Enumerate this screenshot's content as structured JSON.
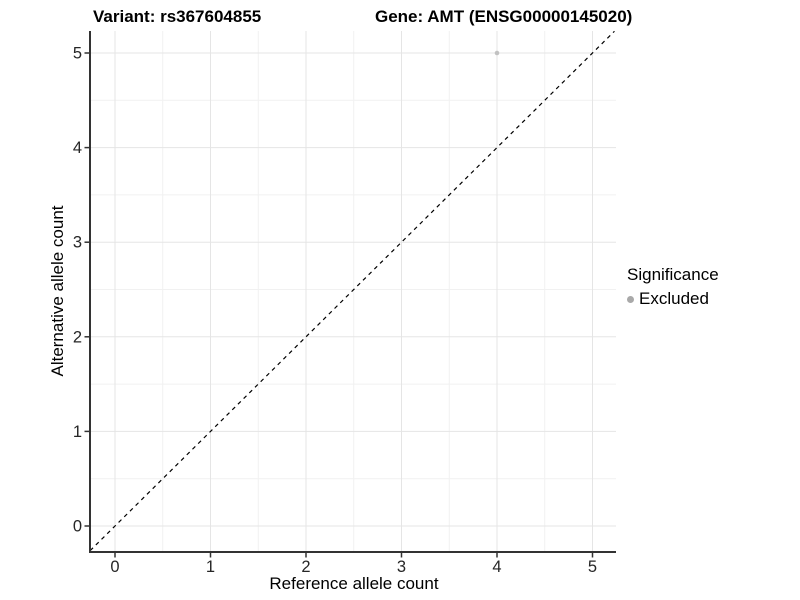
{
  "chart_data": {
    "type": "scatter",
    "title_left": "Variant: rs367604855",
    "title_right": "Gene: AMT (ENSG00000145020)",
    "xlabel": "Reference allele count",
    "ylabel": "Alternative allele count",
    "x_ticks": [
      0,
      1,
      2,
      3,
      4,
      5
    ],
    "y_ticks": [
      0,
      1,
      2,
      3,
      4,
      5
    ],
    "x_minor_ticks": [
      0.5,
      1.5,
      2.5,
      3.5,
      4.5
    ],
    "y_minor_ticks": [
      0.5,
      1.5,
      2.5,
      3.5,
      4.5
    ],
    "xlim": [
      -0.26,
      5.25
    ],
    "ylim": [
      -0.27,
      5.23
    ],
    "grid": {
      "major": true,
      "minor": true,
      "major_color": "#e5e5e5",
      "minor_color": "#f1f1f1"
    },
    "reference_line": {
      "type": "identity",
      "style": "dashed",
      "color": "#000000"
    },
    "series": [
      {
        "name": "Excluded",
        "color": "#c2c2c2",
        "points": [
          {
            "x": 4,
            "y": 5
          }
        ]
      }
    ],
    "legend": {
      "title": "Significance",
      "position": "right",
      "items": [
        {
          "label": "Excluded",
          "color": "#a9a9a9"
        }
      ]
    },
    "axis_color": "#333333",
    "tick_label_color": "#262626"
  }
}
